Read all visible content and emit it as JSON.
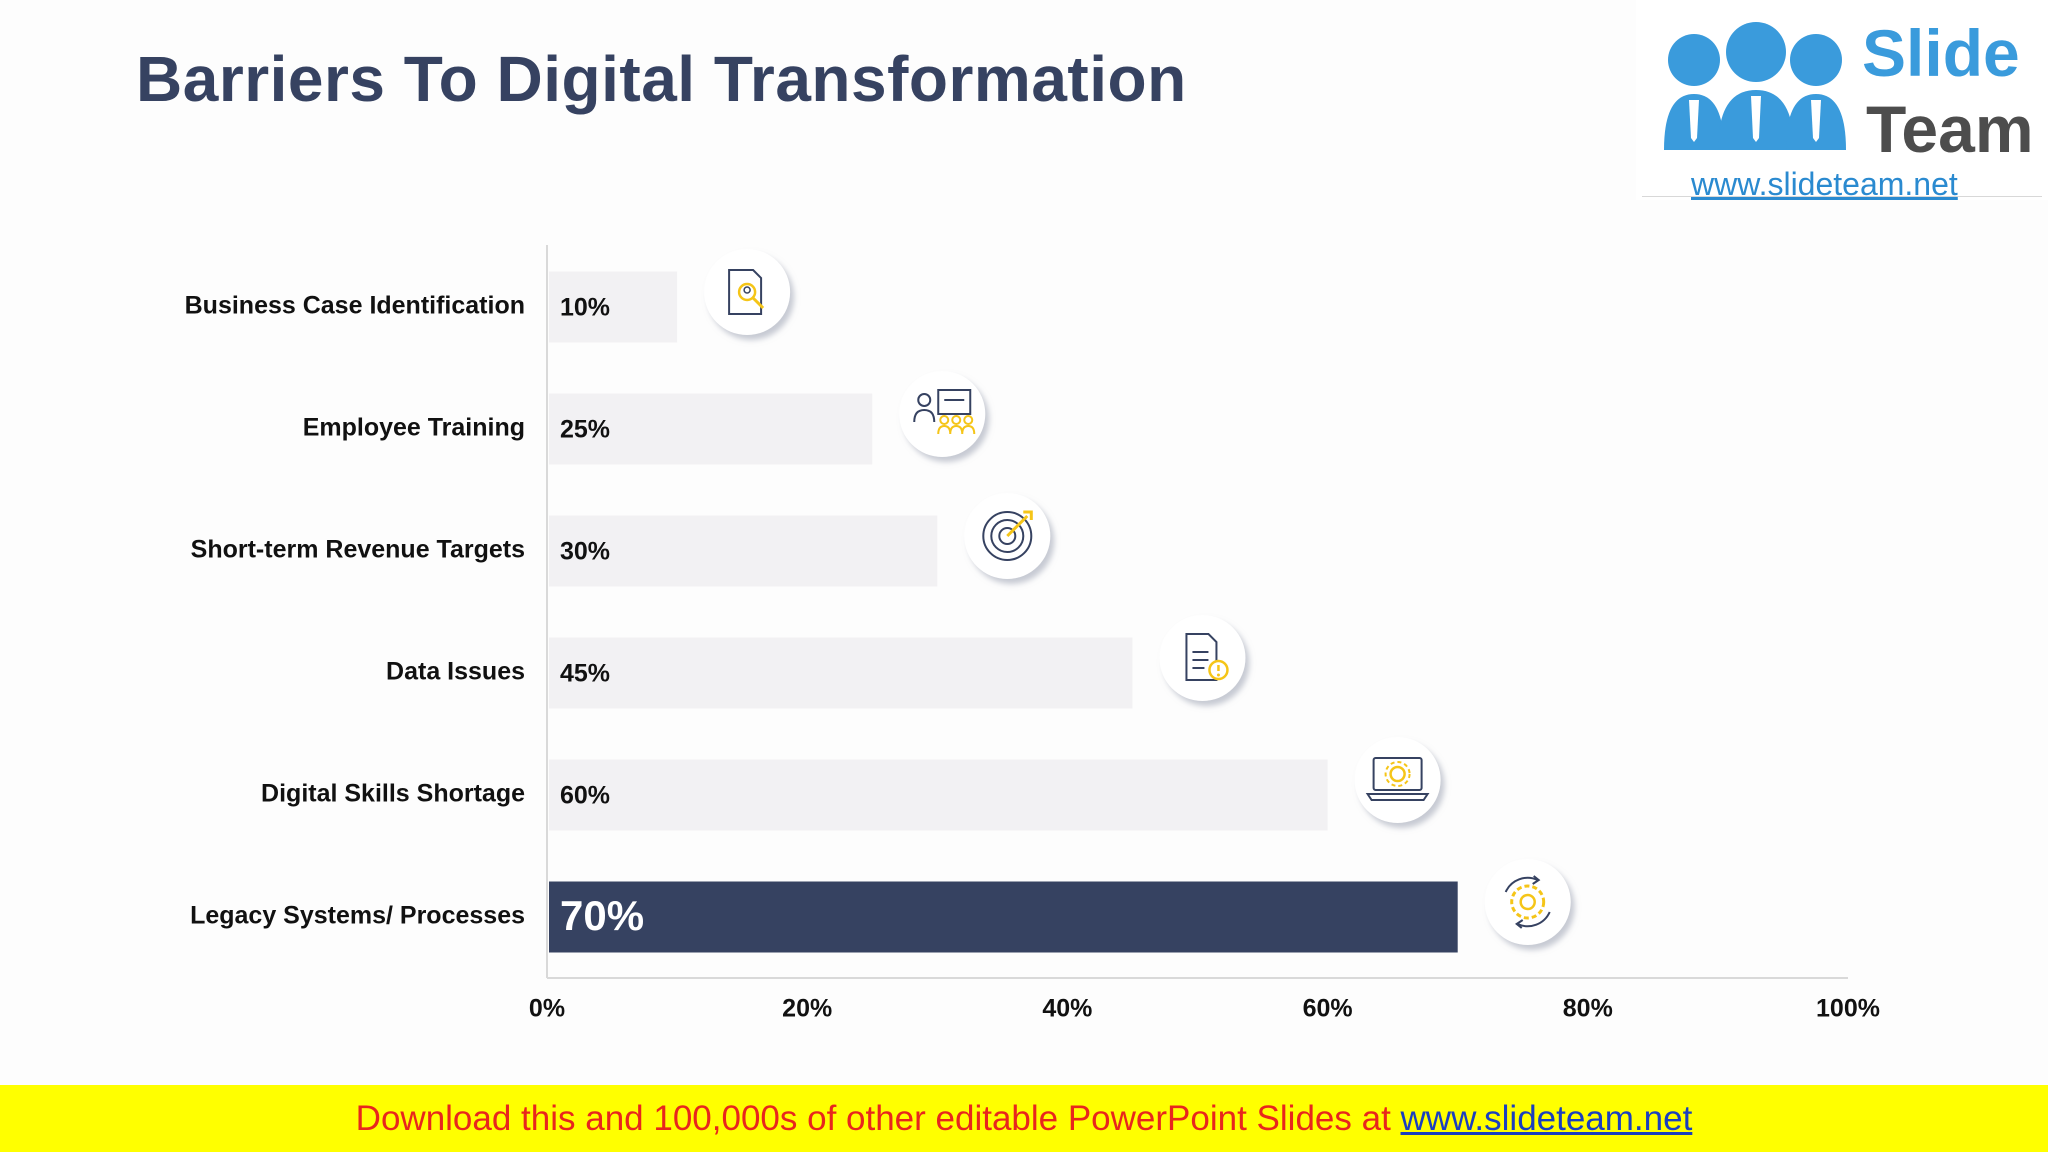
{
  "title": "Barriers To Digital Transformation",
  "logo": {
    "word_top": "Slide",
    "word_bottom": "Team",
    "url": "www.slideteam.net"
  },
  "banner": {
    "text": "Download this and 100,000s of other editable PowerPoint Slides at ",
    "link": "www.slideteam.net"
  },
  "colors": {
    "bar": "#f2f1f3",
    "highlight_bar": "#364261",
    "axis": "#d9d9d9",
    "icon_line": "#364261",
    "icon_accent": "#f5c518",
    "banner_bg": "#ffff00",
    "banner_text": "#e8261d"
  },
  "chart_data": {
    "type": "bar",
    "orientation": "horizontal",
    "categories": [
      "Business Case Identification",
      "Employee Training",
      "Short-term Revenue Targets",
      "Data Issues",
      "Digital Skills Shortage",
      "Legacy Systems/ Processes"
    ],
    "values": [
      10,
      25,
      30,
      45,
      60,
      70
    ],
    "value_labels": [
      "10%",
      "25%",
      "30%",
      "45%",
      "60%",
      "70%"
    ],
    "highlight_index": 5,
    "icons": [
      "document-search-icon",
      "training-presentation-icon",
      "target-arrow-icon",
      "document-warning-icon",
      "laptop-gear-icon",
      "gear-refresh-icon"
    ],
    "xlim": [
      0,
      100
    ],
    "xticks": [
      0,
      20,
      40,
      60,
      80,
      100
    ],
    "xtick_labels": [
      "0%",
      "20%",
      "40%",
      "60%",
      "80%",
      "100%"
    ],
    "xlabel": "",
    "ylabel": "",
    "grid": false,
    "legend": "none"
  }
}
